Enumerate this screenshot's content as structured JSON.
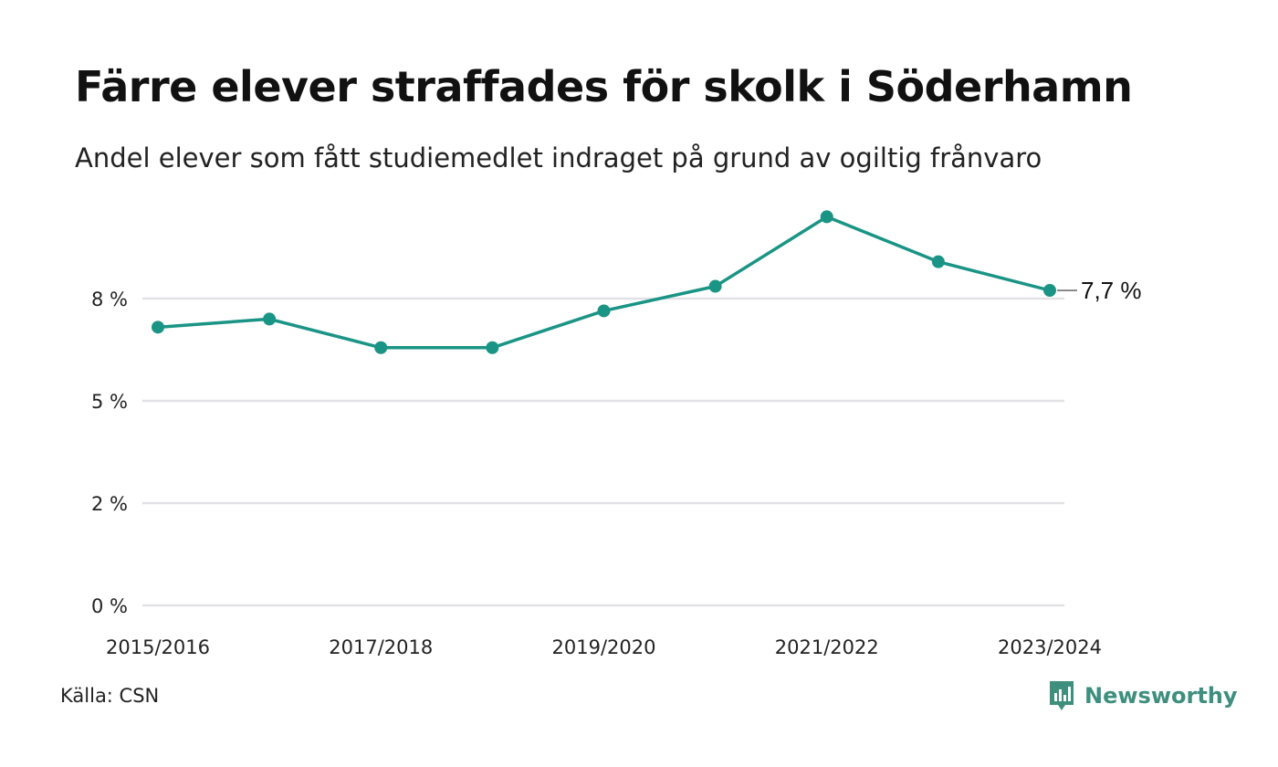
{
  "header": {
    "title": "Färre elever straffades för skolk i Söderhamn",
    "subtitle": "Andel elever som fått studiemedlet indraget på grund av ogiltig frånvaro"
  },
  "footer": {
    "source": "Källa: CSN",
    "brand": "Newsworthy",
    "brand_icon": "bar-chart-speech-bubble-icon"
  },
  "colors": {
    "line": "#1a9485",
    "grid": "#e2e2e6",
    "brand": "#3e8f7e"
  },
  "chart_data": {
    "type": "line",
    "x": [
      "2015/2016",
      "2016/2017",
      "2017/2018",
      "2018/2019",
      "2019/2020",
      "2020/2021",
      "2021/2022",
      "2022/2023",
      "2023/2024"
    ],
    "x_tick_labels": [
      "2015/2016",
      "",
      "2017/2018",
      "",
      "2019/2020",
      "",
      "2021/2022",
      "",
      "2023/2024"
    ],
    "series": [
      {
        "values": [
          6.8,
          7.0,
          6.3,
          6.3,
          7.2,
          7.8,
          9.5,
          8.4,
          7.7
        ]
      }
    ],
    "y_ticks": [
      0,
      2.5,
      5,
      7.5
    ],
    "y_tick_labels": [
      "0 %",
      "2 %",
      "5 %",
      "8 %"
    ],
    "ylim": [
      0,
      7.5
    ],
    "end_label": "7,7 %",
    "grid": true,
    "legend": "none"
  }
}
